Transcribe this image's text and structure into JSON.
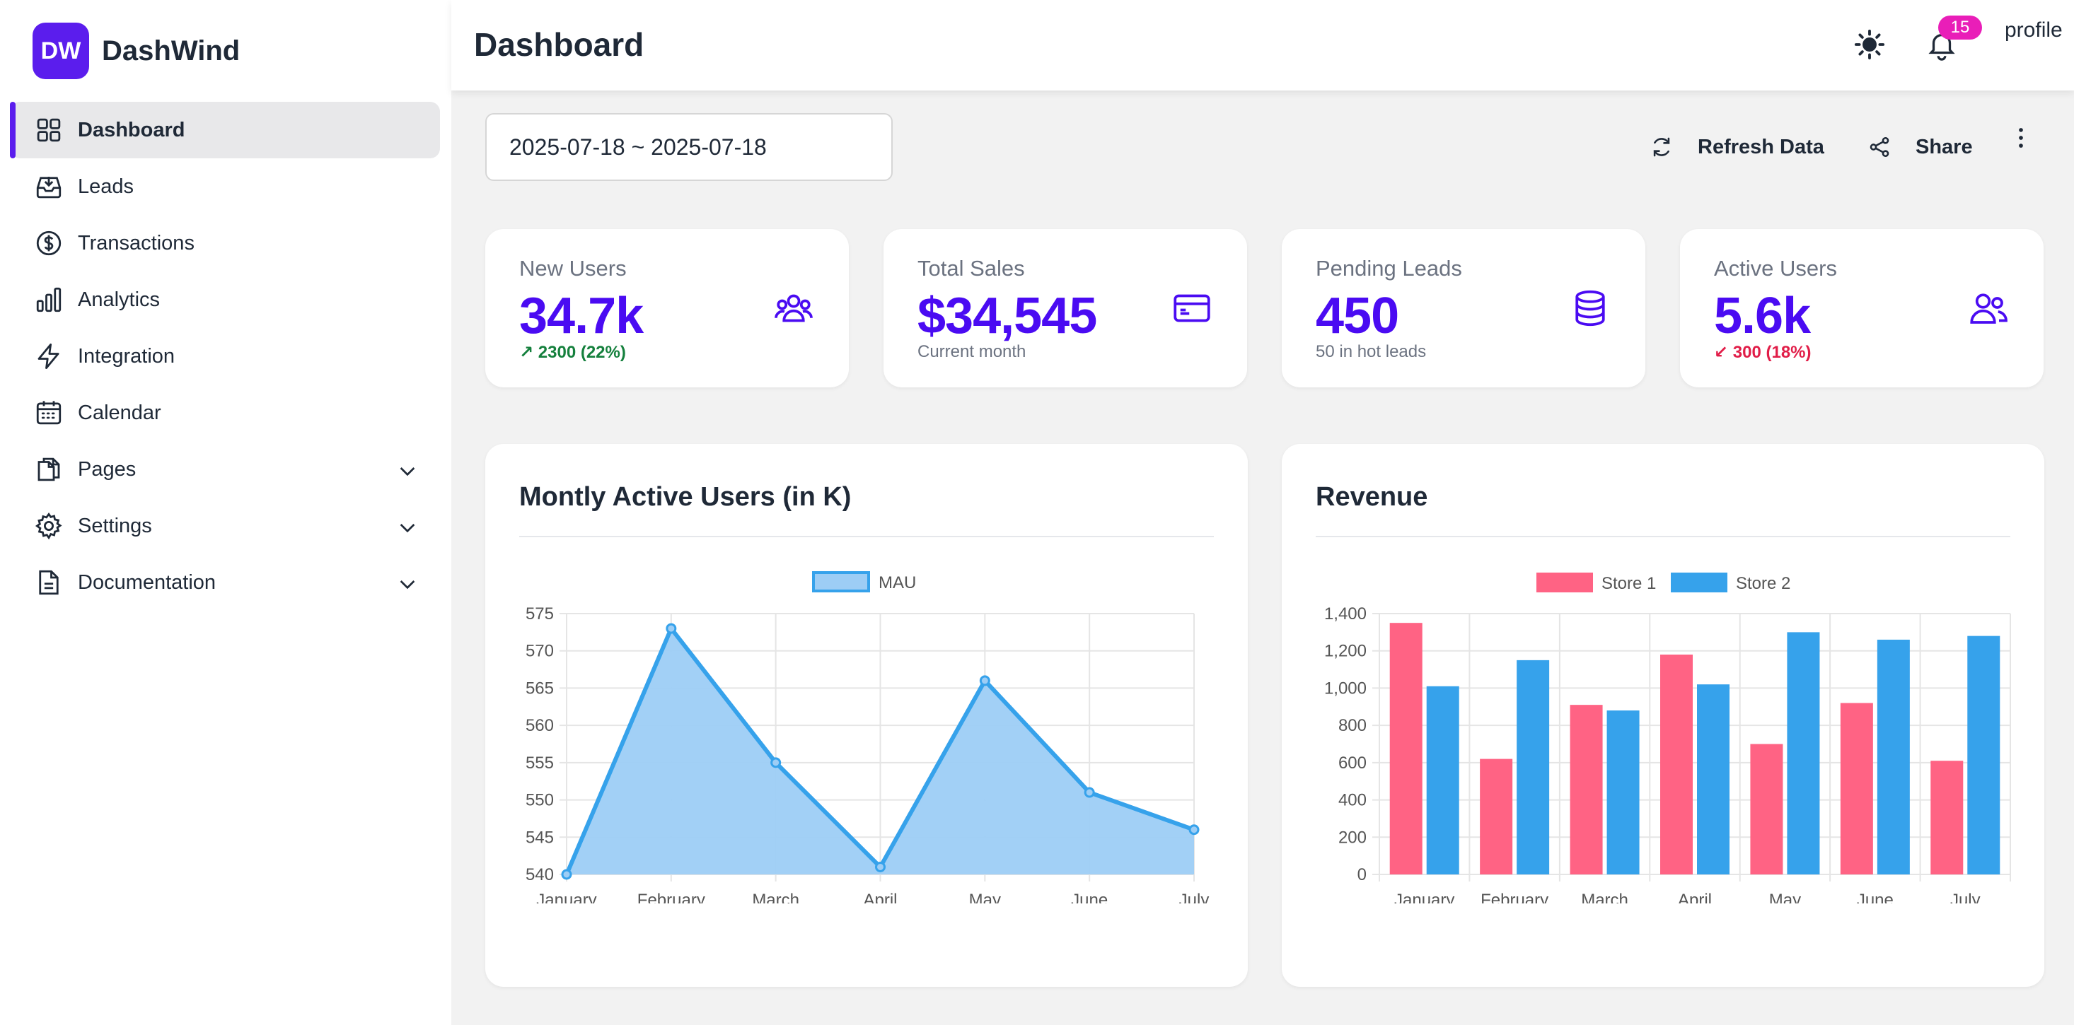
{
  "brand": {
    "logo": "DW",
    "name": "DashWind"
  },
  "sidebar": {
    "items": [
      {
        "label": "Dashboard",
        "icon": "grid-icon",
        "active": true
      },
      {
        "label": "Leads",
        "icon": "inbox-icon"
      },
      {
        "label": "Transactions",
        "icon": "dollar-circle-icon"
      },
      {
        "label": "Analytics",
        "icon": "bar-chart-icon"
      },
      {
        "label": "Integration",
        "icon": "bolt-icon"
      },
      {
        "label": "Calendar",
        "icon": "calendar-icon"
      },
      {
        "label": "Pages",
        "icon": "documents-icon",
        "expandable": true
      },
      {
        "label": "Settings",
        "icon": "gear-icon",
        "expandable": true
      },
      {
        "label": "Documentation",
        "icon": "document-icon",
        "expandable": true
      }
    ]
  },
  "header": {
    "title": "Dashboard",
    "notifications_count": "15",
    "avatar_alt": "profile"
  },
  "toolbar": {
    "date_range": "2025-07-18 ~ 2025-07-18",
    "refresh_label": "Refresh Data",
    "share_label": "Share"
  },
  "stats": [
    {
      "title": "New Users",
      "value": "34.7k",
      "desc": "↗ 2300 (22%)",
      "trend": "up",
      "icon": "user-group-icon"
    },
    {
      "title": "Total Sales",
      "value": "$34,545",
      "desc": "Current month",
      "trend": "none",
      "icon": "credit-card-icon"
    },
    {
      "title": "Pending Leads",
      "value": "450",
      "desc": "50 in hot leads",
      "trend": "none",
      "icon": "database-icon"
    },
    {
      "title": "Active Users",
      "value": "5.6k",
      "desc": "↙ 300 (18%)",
      "trend": "down",
      "icon": "users-icon"
    }
  ],
  "colors": {
    "accent": "#4a0bf2",
    "brand": "#5b1ded",
    "mau_line": "#36a2eb",
    "mau_fill": "#9dcdf5",
    "store1": "#ff6384",
    "store2": "#36a2eb"
  },
  "chart_data": [
    {
      "type": "area",
      "title": "Montly Active Users (in K)",
      "categories": [
        "January",
        "February",
        "March",
        "April",
        "May",
        "June",
        "July"
      ],
      "series": [
        {
          "name": "MAU",
          "values": [
            540,
            573,
            555,
            541,
            566,
            551,
            546
          ]
        }
      ],
      "ylim": [
        540,
        575
      ],
      "yticks": [
        540,
        545,
        550,
        555,
        560,
        565,
        570,
        575
      ],
      "legend": "top-center",
      "grid": true
    },
    {
      "type": "bar",
      "title": "Revenue",
      "categories": [
        "January",
        "February",
        "March",
        "April",
        "May",
        "June",
        "July"
      ],
      "series": [
        {
          "name": "Store 1",
          "values": [
            1350,
            620,
            910,
            1180,
            700,
            920,
            610
          ]
        },
        {
          "name": "Store 2",
          "values": [
            1010,
            1150,
            880,
            1020,
            1300,
            1260,
            1280
          ]
        }
      ],
      "ylim": [
        0,
        1400
      ],
      "yticks": [
        "0",
        "200",
        "400",
        "600",
        "800",
        "1,000",
        "1,200",
        "1,400"
      ],
      "legend": "top-center",
      "grid": true
    }
  ]
}
